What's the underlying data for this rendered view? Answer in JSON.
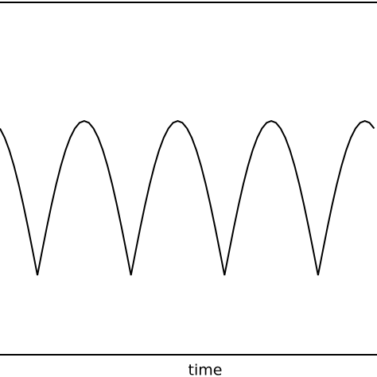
{
  "chart_data": {
    "type": "line",
    "x_label": "time",
    "x": [
      -0.4,
      -0.35,
      -0.3,
      -0.25,
      -0.2,
      -0.15,
      -0.1,
      -0.05,
      0,
      0.05,
      0.1,
      0.15,
      0.2,
      0.25,
      0.3,
      0.35,
      0.4,
      0.45,
      0.5,
      0.55,
      0.6,
      0.65,
      0.7,
      0.75,
      0.8,
      0.85,
      0.9,
      0.95,
      1,
      1.05,
      1.1,
      1.15,
      1.2,
      1.25,
      1.3,
      1.35,
      1.4,
      1.45,
      1.5,
      1.55,
      1.6,
      1.65,
      1.7,
      1.75,
      1.8,
      1.85,
      1.9,
      1.95,
      2,
      2.05,
      2.1,
      2.15,
      2.2,
      2.25,
      2.3,
      2.35,
      2.4,
      2.45,
      2.5,
      2.55,
      2.6,
      2.65,
      2.7,
      2.75,
      2.8,
      2.85,
      2.9,
      2.95,
      3,
      3.05,
      3.1,
      3.15,
      3.2,
      3.25,
      3.3,
      3.35,
      3.4,
      3.45,
      3.5,
      3.55,
      3.6
    ],
    "values": [
      0.951,
      0.891,
      0.809,
      0.707,
      0.588,
      0.454,
      0.309,
      0.156,
      0,
      0.156,
      0.309,
      0.454,
      0.588,
      0.707,
      0.809,
      0.891,
      0.951,
      0.988,
      1,
      0.988,
      0.951,
      0.891,
      0.809,
      0.707,
      0.588,
      0.454,
      0.309,
      0.156,
      0,
      0.156,
      0.309,
      0.454,
      0.588,
      0.707,
      0.809,
      0.891,
      0.951,
      0.988,
      1,
      0.988,
      0.951,
      0.891,
      0.809,
      0.707,
      0.588,
      0.454,
      0.309,
      0.156,
      0,
      0.156,
      0.309,
      0.454,
      0.588,
      0.707,
      0.809,
      0.891,
      0.951,
      0.988,
      1,
      0.988,
      0.951,
      0.891,
      0.809,
      0.707,
      0.588,
      0.454,
      0.309,
      0.156,
      0,
      0.156,
      0.309,
      0.454,
      0.588,
      0.707,
      0.809,
      0.891,
      0.951,
      0.988,
      1,
      0.988,
      0.951
    ],
    "color": "#000000",
    "xlim": [
      -0.4,
      3.63
    ],
    "ylim": [
      -0.515,
      1.768
    ]
  }
}
